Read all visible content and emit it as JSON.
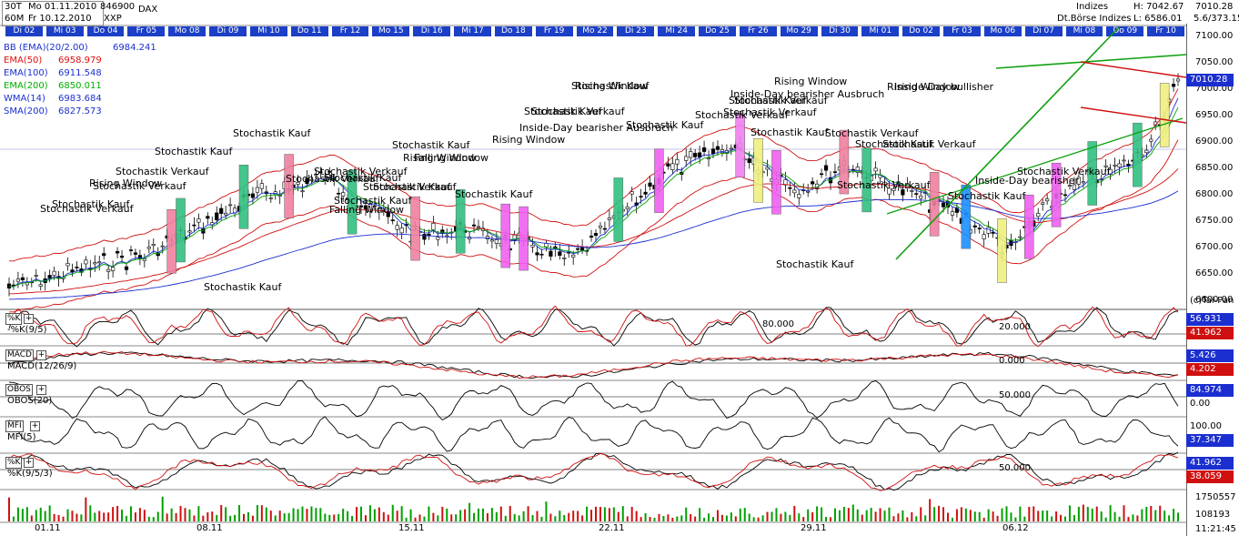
{
  "header": {
    "timeframe_top": "30T",
    "timeframe_bottom": "60M",
    "date_from": "Mo 01.11.2010",
    "date_to": "Fr 10.12.2010",
    "code": "846900",
    "exchange": "XXP",
    "symbol": "DAX",
    "category": "Indizes",
    "market": "Dt.Börse Indizes",
    "high": "H: 7042.67",
    "low": "L: 6586.01",
    "last": "7010.28",
    "change": "5.6/373.15"
  },
  "days": [
    "Di 02",
    "Mi 03",
    "Do 04",
    "Fr 05",
    "Mo 08",
    "Di 09",
    "Mi 10",
    "Do 11",
    "Fr 12",
    "Mo 15",
    "Di 16",
    "Mi 17",
    "Do 18",
    "Fr 19",
    "Mo 22",
    "Di 23",
    "Mi 24",
    "Do 25",
    "Fr 26",
    "Mo 29",
    "Di 30",
    "Mi 01",
    "Do 02",
    "Fr 03",
    "Mo 06",
    "Di 07",
    "Mi 08",
    "Do 09",
    "Fr 10"
  ],
  "legend": [
    {
      "label": "BB (EMA)(20/2.00)",
      "value": "6984.241",
      "color": "#1b2fd1"
    },
    {
      "label": "EMA(50)",
      "value": "6958.979",
      "color": "#e01010"
    },
    {
      "label": "EMA(100)",
      "value": "6911.548",
      "color": "#1b2fd1"
    },
    {
      "label": "EMA(200)",
      "value": "6850.011",
      "color": "#00b000"
    },
    {
      "label": "WMA(14)",
      "value": "6983.684",
      "color": "#1b2fd1"
    },
    {
      "label": "SMA(200)",
      "value": "6827.573",
      "color": "#1b2fd1"
    }
  ],
  "price_axis": [
    "7100.00",
    "7050.00",
    "7000.00",
    "6950.00",
    "6900.00",
    "6850.00",
    "6800.00",
    "6750.00",
    "6700.00",
    "6650.00",
    "6600.00"
  ],
  "copyright": "(c)Tai-Pan",
  "indicators": [
    {
      "tag": "%K",
      "name": "-%K(9/5)",
      "val1": "56.931",
      "val2": "41.962",
      "level1": "80.000",
      "level2": "20.000"
    },
    {
      "tag": "MACD",
      "name": "MACD(12/26/9)",
      "val1": "5.426",
      "val2": "4.202",
      "level1": "0.000"
    },
    {
      "tag": "OBOS",
      "name": "OBOS(20)",
      "val1": "84.974",
      "val2": "0.00",
      "level1": "50.000"
    },
    {
      "tag": "MFI",
      "name": "MFI(5)",
      "val1": "100.00",
      "val2": "37.347"
    },
    {
      "tag": "%K",
      "name": "%K(9/5/3)",
      "val1": "41.962",
      "val2": "38.059",
      "level1": "50.000"
    }
  ],
  "volume_axis": [
    "1750557",
    "108193"
  ],
  "time": "11:21:45",
  "x_labels": [
    "01.11",
    "08.11",
    "15.11",
    "22.11",
    "29.11",
    "06.12"
  ],
  "annotations": [
    "Stochastik Kauf",
    "Stochastik Verkauf",
    "Stochastik Kauf",
    "Stochastik Verkauf",
    "Rising Window",
    "Stochastik Verkauf",
    "Stochastik Kauf",
    "Stochastik Verkauf",
    "Stochastik Kauf",
    "Stochastik Verkauf",
    "Stochastik Kauf",
    "Falling Window",
    "Stochastik Kauf",
    "Stochastik Verkauf",
    "Stochastik Kauf",
    "Falling Window",
    "Stochastik Kauf",
    "Rising Window",
    "Stochastik Kauf",
    "Rising Window",
    "Inside-Day bearisher Ausbruch",
    "Stochastik Kauf",
    "Stochastik Verkauf",
    "Stochastik Kauf",
    "Rising Window",
    "Stochastik Kauf",
    "Stochastik Verkauf",
    "Inside-Day bearisher Ausbruch",
    "Stochastik Kauf",
    "Stochastik Verkauf",
    "Stochastik Verkauf",
    "Stochastik Kauf",
    "Rising Window",
    "Stochastik Verkauf",
    "Stochastik Kauf",
    "Stochastik Verkauf",
    "Stochastik Kauf",
    "Stochastik Verkauf",
    "Rising Window",
    "Inside-Day bullisher",
    "Inside-Day bearisher",
    "Stochastik Kauf",
    "Stochastik Verkauf"
  ]
}
